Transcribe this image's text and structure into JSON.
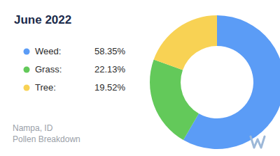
{
  "chart_data": {
    "type": "pie",
    "title": "June 2022",
    "categories": [
      "Weed:",
      "Grass:",
      "Tree:"
    ],
    "values": [
      58.35,
      22.13,
      19.52
    ],
    "value_labels": [
      "58.35%",
      "22.13%",
      "19.52%"
    ],
    "colors": [
      "#5b9cf6",
      "#63c95a",
      "#f8d254"
    ],
    "legend": "left",
    "annotations": [
      "Nampa, ID",
      "Pollen Breakdown"
    ]
  }
}
